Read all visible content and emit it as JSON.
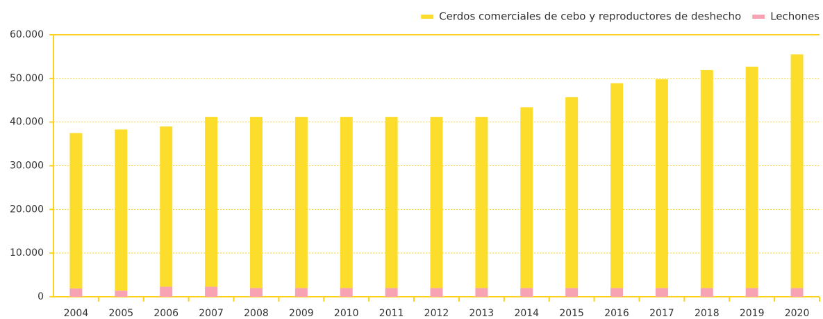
{
  "chart_data": {
    "type": "stacked_bar",
    "categories": [
      "2004",
      "2005",
      "2006",
      "2007",
      "2008",
      "2009",
      "2010",
      "2011",
      "2012",
      "2013",
      "2014",
      "2015",
      "2016",
      "2017",
      "2018",
      "2019",
      "2020"
    ],
    "series": [
      {
        "name": "Lechones",
        "color": "#f7a3b4",
        "values": [
          1900,
          1400,
          2300,
          2300,
          2000,
          2000,
          2000,
          2000,
          2000,
          2000,
          2000,
          2000,
          2000,
          2000,
          2000,
          2000,
          2000
        ]
      },
      {
        "name": "Cerdos comerciales de cebo y reproductores de deshecho",
        "color": "#fddd2b",
        "values": [
          35600,
          36900,
          36700,
          38900,
          39200,
          39200,
          39200,
          39200,
          39200,
          39200,
          41400,
          43700,
          46900,
          47800,
          49900,
          50700,
          53500
        ]
      }
    ],
    "ylim": [
      0,
      60000
    ],
    "yticks": [
      0,
      {
        "value": 10000,
        "label": "10.000"
      },
      {
        "value": 20000,
        "label": "20.000"
      },
      {
        "value": 30000,
        "label": "30.000"
      },
      {
        "value": 40000,
        "label": "40.000"
      },
      {
        "value": 50000,
        "label": "50.000"
      },
      {
        "value": 60000,
        "label": "60.000"
      }
    ],
    "grid": true,
    "legend": "top-right"
  }
}
